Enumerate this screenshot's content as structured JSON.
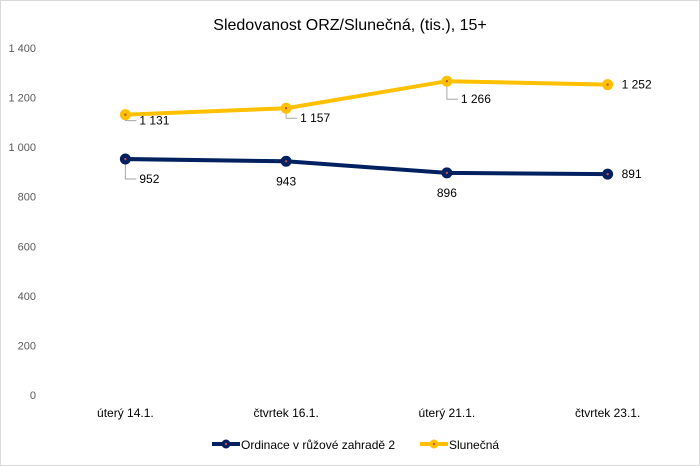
{
  "chart_data": {
    "type": "line",
    "title": "Sledovanost ORZ/Slunečná,  (tis.), 15+",
    "categories": [
      "úterý 14.1.",
      "čtvrtek 16.1.",
      "úterý 21.1.",
      "čtvrtek 23.1."
    ],
    "series": [
      {
        "name": "Ordinace v růžové zahradě 2",
        "values": [
          952,
          943,
          896,
          891
        ],
        "labels": [
          "952",
          "943",
          "896",
          "891"
        ],
        "color": "#002060"
      },
      {
        "name": "Slunečná",
        "values": [
          1131,
          1157,
          1266,
          1252
        ],
        "labels": [
          "1 131",
          "1 157",
          "1 266",
          "1 252"
        ],
        "color": "#ffc000"
      }
    ],
    "ylim": [
      0,
      1400
    ],
    "yticks": [
      0,
      200,
      400,
      600,
      800,
      1000,
      1200,
      1400
    ],
    "ytick_labels": [
      "0",
      "200",
      "400",
      "600",
      "800",
      "1 000",
      "1 200",
      "1 400"
    ],
    "grid": false,
    "legend": "bottom"
  }
}
